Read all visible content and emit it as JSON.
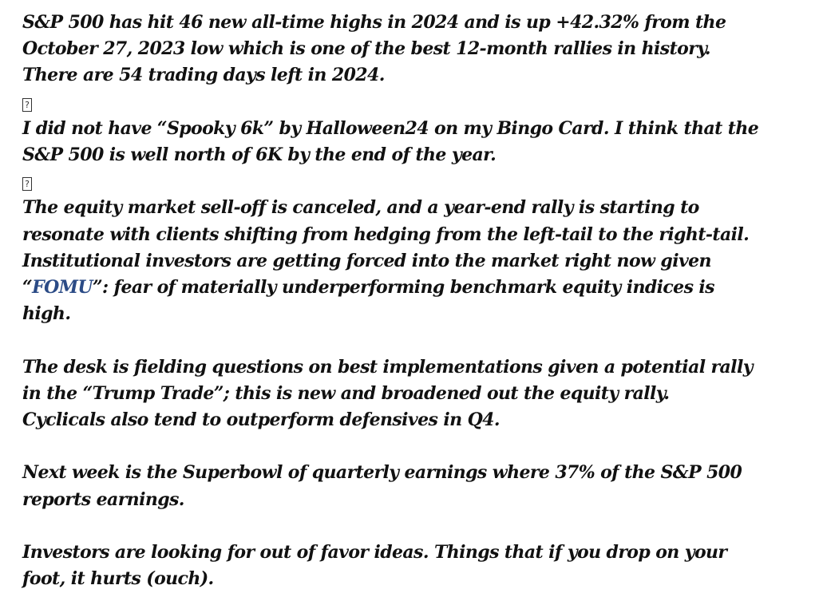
{
  "document": {
    "paragraph1": {
      "line1": "S&P 500 has hit 46 new all-time highs in 2024 and is up +42.32% from the",
      "line2": "October 27, 2023 low which is one of the best 12-month rallies in history.",
      "line3": "There are 54 trading days left in 2024."
    },
    "image_placeholder_1": "?",
    "paragraph2": {
      "line1": "I did not have “Spooky 6k” by Halloween24 on my Bingo Card. I think that the",
      "line2": "S&P 500 is well north of 6K by the end of the year."
    },
    "image_placeholder_2": "?",
    "paragraph3": {
      "line1": "The equity market sell-off is canceled, and a year-end rally is starting to",
      "line2": "resonate with clients shifting from hedging from the left-tail to the right-tail.",
      "line3": "Institutional investors are getting forced into the market right now given",
      "line4_open_quote": "“",
      "line4_link": "FOMU",
      "line4_rest": "”: fear of materially underperforming benchmark equity indices is",
      "line5": "high."
    },
    "paragraph4": {
      "line1": "The desk is fielding questions on best implementations given a potential rally",
      "line2": "in the “Trump Trade”; this is new and broadened out the equity rally.",
      "line3": "Cyclicals also tend to outperform defensives in Q4."
    },
    "paragraph5": {
      "line1": "Next week is the Superbowl of quarterly earnings where 37% of the S&P 500",
      "line2": "reports earnings."
    },
    "paragraph6": {
      "line1": "Investors are looking for out of favor ideas. Things that if you drop on your",
      "line2": "foot, it hurts (ouch)."
    }
  },
  "colors": {
    "text": "#111111",
    "link": "#2b4b86",
    "background": "#ffffff"
  }
}
